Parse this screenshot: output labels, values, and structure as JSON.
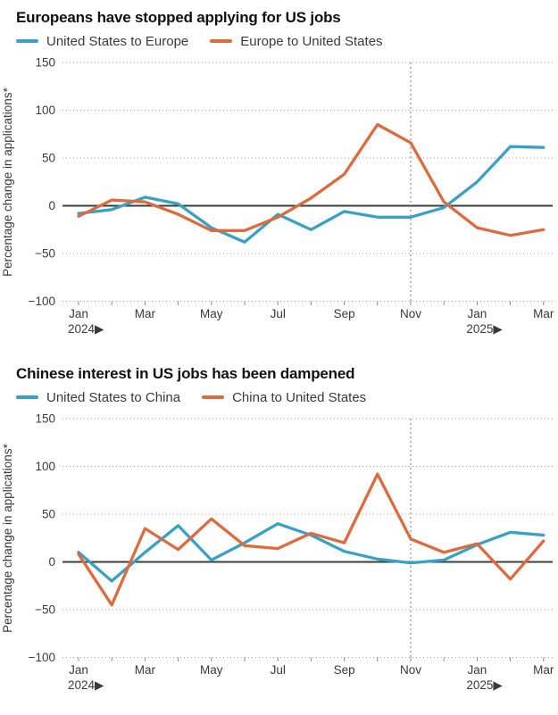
{
  "colors": {
    "blue": "#3AA1C6",
    "orange": "#DC6B3F",
    "zero_line": "#3d3d3d",
    "grid_line": "#9a9a9a",
    "annotation_line": "#777777",
    "title_text": "#111111",
    "axis_text": "#3a3a3a"
  },
  "chart_data": [
    {
      "type": "line",
      "title": "Europeans have stopped applying for US jobs",
      "ylabel": "Percentage change in applications*",
      "ylim": [
        -100,
        150
      ],
      "yticks": [
        150,
        100,
        50,
        0,
        -50,
        -100
      ],
      "grid": "dotted horizontal gridlines, solid zero line",
      "legend_position": "top",
      "annotation_line_x_index": 10,
      "x": [
        "Jan 2024",
        "Feb 2024",
        "Mar 2024",
        "Apr 2024",
        "May 2024",
        "Jun 2024",
        "Jul 2024",
        "Aug 2024",
        "Sep 2024",
        "Oct 2024",
        "Nov 2024",
        "Dec 2024",
        "Jan 2025",
        "Feb 2025",
        "Mar 2025"
      ],
      "x_ticks": [
        {
          "i": 0,
          "label": "Jan",
          "year": "2024▶"
        },
        {
          "i": 2,
          "label": "Mar"
        },
        {
          "i": 4,
          "label": "May"
        },
        {
          "i": 6,
          "label": "Jul"
        },
        {
          "i": 8,
          "label": "Sep"
        },
        {
          "i": 10,
          "label": "Nov"
        },
        {
          "i": 12,
          "label": "Jan",
          "year": "2025▶"
        },
        {
          "i": 14,
          "label": "Mar"
        }
      ],
      "series": [
        {
          "name": "United States to Europe",
          "color": "#3AA1C6",
          "values": [
            -8,
            -4,
            9,
            2,
            -23,
            -38,
            -9,
            -25,
            -6,
            -12,
            -12,
            -2,
            25,
            62,
            61
          ]
        },
        {
          "name": "Europe to United States",
          "color": "#DC6B3F",
          "values": [
            -11,
            6,
            4,
            -9,
            -26,
            -26,
            -12,
            8,
            33,
            85,
            66,
            4,
            -23,
            -31,
            -25
          ]
        }
      ]
    },
    {
      "type": "line",
      "title": "Chinese interest in US jobs has been dampened",
      "ylabel": "Percentage change in applications*",
      "ylim": [
        -100,
        150
      ],
      "yticks": [
        150,
        100,
        50,
        0,
        -50,
        -100
      ],
      "grid": "dotted horizontal gridlines, solid zero line",
      "legend_position": "top",
      "annotation_line_x_index": 10,
      "x": [
        "Jan 2024",
        "Feb 2024",
        "Mar 2024",
        "Apr 2024",
        "May 2024",
        "Jun 2024",
        "Jul 2024",
        "Aug 2024",
        "Sep 2024",
        "Oct 2024",
        "Nov 2024",
        "Dec 2024",
        "Jan 2025",
        "Feb 2025",
        "Mar 2025"
      ],
      "x_ticks": [
        {
          "i": 0,
          "label": "Jan",
          "year": "2024▶"
        },
        {
          "i": 2,
          "label": "Mar"
        },
        {
          "i": 4,
          "label": "May"
        },
        {
          "i": 6,
          "label": "Jul"
        },
        {
          "i": 8,
          "label": "Sep"
        },
        {
          "i": 10,
          "label": "Nov"
        },
        {
          "i": 12,
          "label": "Jan",
          "year": "2025▶"
        },
        {
          "i": 14,
          "label": "Mar"
        }
      ],
      "series": [
        {
          "name": "United States to China",
          "color": "#3AA1C6",
          "values": [
            10,
            -20,
            10,
            38,
            2,
            20,
            40,
            28,
            11,
            3,
            -1,
            2,
            18,
            31,
            28
          ]
        },
        {
          "name": "China to United States",
          "color": "#DC6B3F",
          "values": [
            8,
            -45,
            35,
            13,
            45,
            17,
            14,
            30,
            20,
            92,
            24,
            10,
            19,
            -18,
            22
          ]
        }
      ]
    }
  ]
}
